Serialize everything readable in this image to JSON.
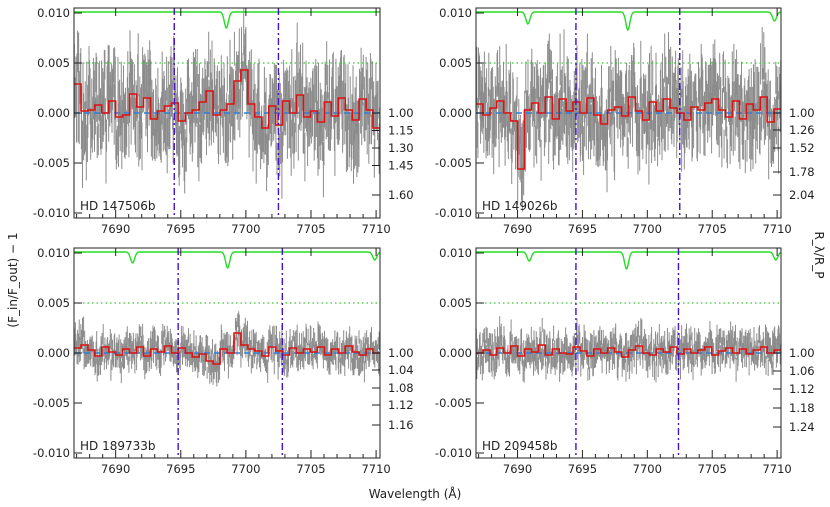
{
  "figure": {
    "ylabel": "(F_in/F_out) − 1",
    "xlabel": "Wavelength (Å)",
    "right_ylabel": "R_λ/R_P"
  },
  "colors": {
    "errorbars": "#8c8c8c",
    "binned": "#dd1111",
    "model": "#2e7fd6",
    "telluric": "#22dd22",
    "threshold": "#33cc33",
    "line_markers": "#4411cc"
  },
  "chart_data": [
    {
      "type": "line",
      "label": "HD 147506b",
      "xlim": [
        7686.8,
        7710.3
      ],
      "ylim": [
        -0.0105,
        0.0105
      ],
      "x_ticks": [
        7690,
        7695,
        7700,
        7705,
        7710
      ],
      "y_ticks": [
        -0.01,
        -0.005,
        0.0,
        0.005,
        0.01
      ],
      "y_tick_labels": [
        "-0.010",
        "-0.005",
        "0.000",
        "0.005",
        "0.010"
      ],
      "right_ticks": [
        "1.00",
        "1.15",
        "1.30",
        "1.45",
        "1.60"
      ],
      "right_tick_values": [
        0.0,
        -0.00175,
        -0.0035,
        -0.00525,
        -0.0082
      ],
      "threshold_y": 0.005,
      "line_markers_x": [
        7694.5,
        7702.5
      ],
      "telluric_dips": [
        [
          7698.5,
          0.0016
        ]
      ],
      "noise_amplitude": 0.0042,
      "binned_flux": [
        0.0029,
        0.0002,
        0.0003,
        0.0008,
        0.0,
        0.0012,
        -0.0004,
        -0.0002,
        0.0019,
        0.0006,
        0.0015,
        -0.0006,
        0.0002,
        0.0007,
        0.001,
        -0.0008,
        0.0,
        0.0003,
        0.0011,
        0.0022,
        -0.0002,
        0.0003,
        0.0009,
        0.0032,
        0.0043,
        0.0009,
        -0.0004,
        -0.0015,
        0.0007,
        -0.0012,
        0.0012,
        0.0,
        0.0018,
        -0.0004,
        0.0002,
        -0.0009,
        0.0011,
        -0.0003,
        0.0015,
        0.0003,
        -0.0007,
        0.0014,
        0.0003,
        -0.0015
      ]
    },
    {
      "type": "line",
      "label": "HD 149026b",
      "xlim": [
        7686.8,
        7710.3
      ],
      "ylim": [
        -0.0105,
        0.0105
      ],
      "x_ticks": [
        7690,
        7695,
        7700,
        7705,
        7710
      ],
      "y_ticks": [
        -0.01,
        -0.005,
        0.0,
        0.005,
        0.01
      ],
      "y_tick_labels": [
        "-0.010",
        "-0.005",
        "0.000",
        "0.005",
        "0.010"
      ],
      "right_ticks": [
        "1.00",
        "1.26",
        "1.52",
        "1.78",
        "2.04"
      ],
      "right_tick_values": [
        0.0,
        -0.0017,
        -0.0035,
        -0.0059,
        -0.0082
      ],
      "threshold_y": 0.005,
      "line_markers_x": [
        7694.5,
        7702.5
      ],
      "telluric_dips": [
        [
          7690.8,
          0.0012
        ],
        [
          7698.5,
          0.0018
        ],
        [
          7709.8,
          0.0009
        ]
      ],
      "noise_amplitude": 0.004,
      "binned_flux": [
        0.0009,
        -0.0002,
        0.0005,
        0.0012,
        0.0,
        -0.0008,
        -0.0056,
        0.0003,
        0.001,
        0.0,
        0.0016,
        -0.0006,
        0.0014,
        0.0002,
        0.0011,
        0.0,
        0.0015,
        -0.0002,
        -0.0011,
        0.0003,
        0.0006,
        -0.0003,
        0.0016,
        0.0002,
        -0.0007,
        0.0011,
        0.0002,
        0.0014,
        0.0005,
        0.0,
        -0.0007,
        0.0006,
        0.0003,
        0.001,
        0.0014,
        0.0003,
        -0.0004,
        0.0012,
        -0.0006,
        0.0009,
        0.0003,
        0.0016,
        -0.0009,
        0.0004
      ]
    },
    {
      "type": "line",
      "label": "HD 189733b",
      "xlim": [
        7686.8,
        7710.3
      ],
      "ylim": [
        -0.0105,
        0.0105
      ],
      "x_ticks": [
        7690,
        7695,
        7700,
        7705,
        7710
      ],
      "y_ticks": [
        -0.01,
        -0.005,
        0.0,
        0.005,
        0.01
      ],
      "y_tick_labels": [
        "-0.010",
        "-0.005",
        "0.000",
        "0.005",
        "0.010"
      ],
      "right_ticks": [
        "1.00",
        "1.04",
        "1.08",
        "1.12",
        "1.16"
      ],
      "right_tick_values": [
        0.0,
        -0.0017,
        -0.0035,
        -0.0052,
        -0.0072
      ],
      "threshold_y": 0.005,
      "line_markers_x": [
        7694.8,
        7702.8
      ],
      "telluric_dips": [
        [
          7691.3,
          0.0011
        ],
        [
          7698.6,
          0.0016
        ],
        [
          7709.9,
          0.0008
        ]
      ],
      "noise_amplitude": 0.0016,
      "binned_flux": [
        0.0005,
        0.0008,
        0.0003,
        -0.0003,
        0.0006,
        0.0001,
        -0.0002,
        0.0004,
        0.0,
        0.0006,
        -0.0003,
        0.0004,
        0.0001,
        0.0007,
        0.0,
        0.0005,
        0.0,
        -0.0004,
        -0.0001,
        -0.0008,
        -0.0011,
        0.0004,
        0.0,
        0.002,
        0.0008,
        0.0004,
        0.0002,
        -0.0003,
        0.0006,
        0.0002,
        -0.0002,
        0.0005,
        0.0,
        0.0004,
        0.0001,
        0.0006,
        -0.0002,
        0.0004,
        0.0,
        0.0007,
        0.0001,
        -0.0002,
        0.0004,
        0.0
      ]
    },
    {
      "type": "line",
      "label": "HD 209458b",
      "xlim": [
        7686.8,
        7710.3
      ],
      "ylim": [
        -0.0105,
        0.0105
      ],
      "x_ticks": [
        7690,
        7695,
        7700,
        7705,
        7710
      ],
      "y_ticks": [
        -0.01,
        -0.005,
        0.0,
        0.005,
        0.01
      ],
      "y_tick_labels": [
        "-0.010",
        "-0.005",
        "0.000",
        "0.005",
        "0.010"
      ],
      "right_ticks": [
        "1.00",
        "1.06",
        "1.12",
        "1.18",
        "1.24"
      ],
      "right_tick_values": [
        0.0,
        -0.0018,
        -0.0036,
        -0.0055,
        -0.0074
      ],
      "threshold_y": 0.005,
      "line_markers_x": [
        7694.5,
        7702.4
      ],
      "telluric_dips": [
        [
          7690.9,
          0.0009
        ],
        [
          7698.4,
          0.0017
        ],
        [
          7709.9,
          0.0008
        ]
      ],
      "noise_amplitude": 0.0017,
      "binned_flux": [
        0.0,
        0.0003,
        -0.0002,
        0.0005,
        0.0,
        0.0007,
        -0.0003,
        0.0004,
        0.0001,
        0.0008,
        -0.0002,
        0.0004,
        0.0,
        -0.0001,
        0.0006,
        0.0002,
        -0.0003,
        0.0004,
        0.0,
        0.0005,
        0.0001,
        -0.0004,
        0.0003,
        0.0007,
        0.0,
        -0.0002,
        0.0004,
        0.0001,
        0.0006,
        -0.0001,
        0.0004,
        0.0,
        0.0003,
        0.0006,
        -0.0002,
        0.0002,
        0.0005,
        0.0,
        0.0004,
        -0.0001,
        0.0003,
        0.0006,
        0.0,
        0.0003
      ]
    }
  ]
}
